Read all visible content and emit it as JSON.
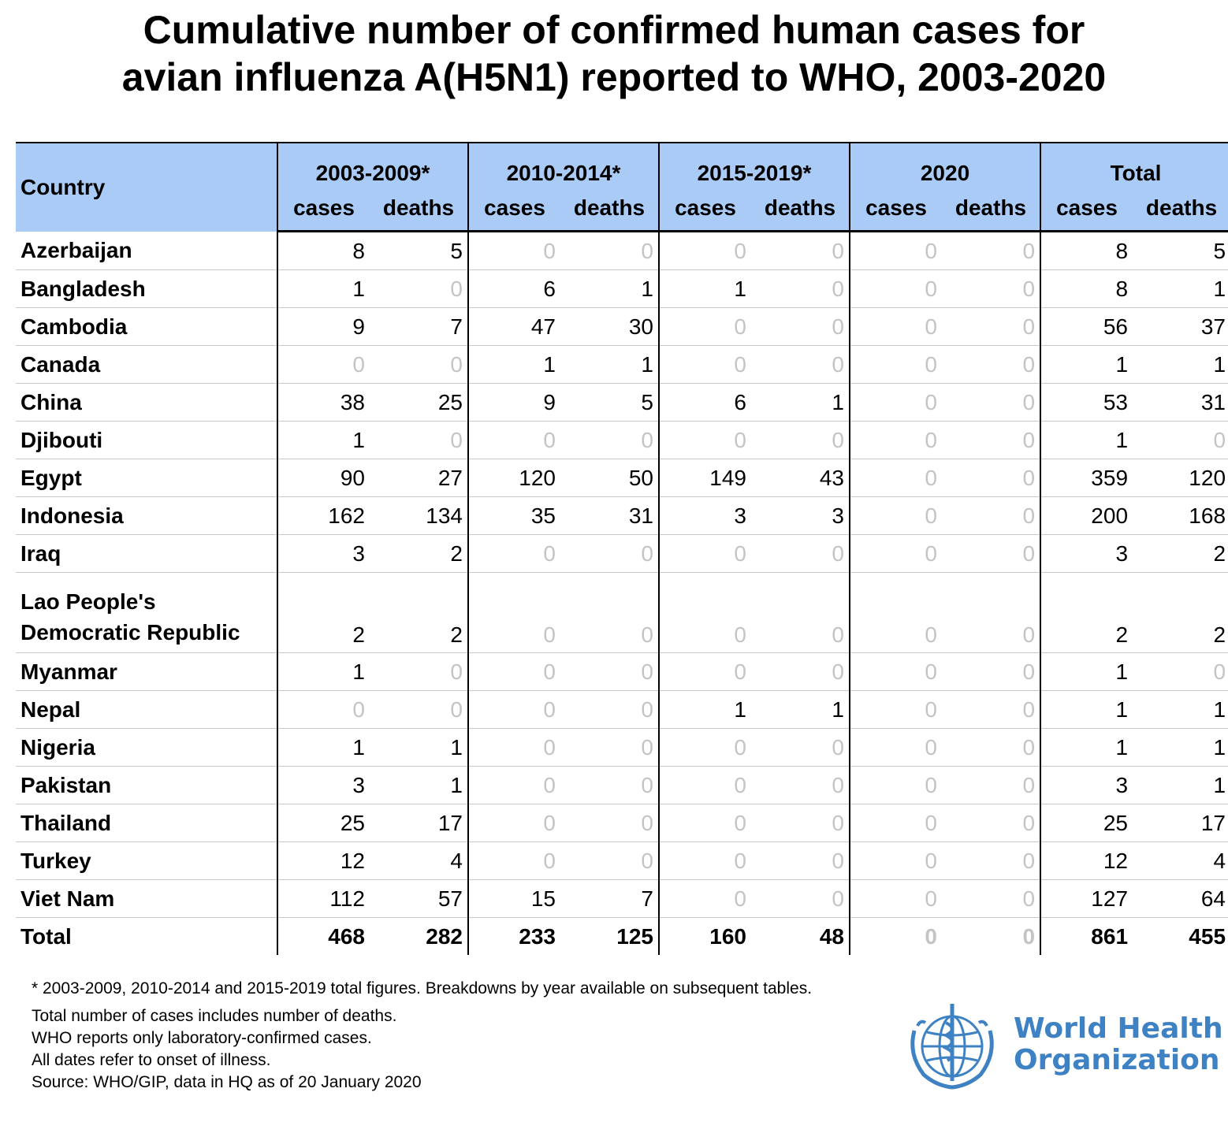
{
  "title": {
    "line1": "Cumulative number of confirmed human cases for",
    "line2": "avian influenza A(H5N1) reported to WHO, 2003-2020"
  },
  "table": {
    "country_header": "Country",
    "groups": [
      "2003-2009*",
      "2010-2014*",
      "2015-2019*",
      "2020",
      "Total"
    ],
    "sub_cases": "cases",
    "sub_deaths": "deaths",
    "rows": [
      {
        "country": "Azerbaijan",
        "values": [
          "8",
          "5",
          "0",
          "0",
          "0",
          "0",
          "0",
          "0",
          "8",
          "5"
        ]
      },
      {
        "country": "Bangladesh",
        "values": [
          "1",
          "0",
          "6",
          "1",
          "1",
          "0",
          "0",
          "0",
          "8",
          "1"
        ]
      },
      {
        "country": "Cambodia",
        "values": [
          "9",
          "7",
          "47",
          "30",
          "0",
          "0",
          "0",
          "0",
          "56",
          "37"
        ]
      },
      {
        "country": "Canada",
        "values": [
          "0",
          "0",
          "1",
          "1",
          "0",
          "0",
          "0",
          "0",
          "1",
          "1"
        ]
      },
      {
        "country": "China",
        "values": [
          "38",
          "25",
          "9",
          "5",
          "6",
          "1",
          "0",
          "0",
          "53",
          "31"
        ]
      },
      {
        "country": "Djibouti",
        "values": [
          "1",
          "0",
          "0",
          "0",
          "0",
          "0",
          "0",
          "0",
          "1",
          "0"
        ]
      },
      {
        "country": "Egypt",
        "values": [
          "90",
          "27",
          "120",
          "50",
          "149",
          "43",
          "0",
          "0",
          "359",
          "120"
        ]
      },
      {
        "country": "Indonesia",
        "values": [
          "162",
          "134",
          "35",
          "31",
          "3",
          "3",
          "0",
          "0",
          "200",
          "168"
        ]
      },
      {
        "country": "Iraq",
        "values": [
          "3",
          "2",
          "0",
          "0",
          "0",
          "0",
          "0",
          "0",
          "3",
          "2"
        ]
      },
      {
        "country_line1": "Lao People's",
        "country_line2": "Democratic Republic",
        "values": [
          "2",
          "2",
          "0",
          "0",
          "0",
          "0",
          "0",
          "0",
          "2",
          "2"
        ]
      },
      {
        "country": "Myanmar",
        "values": [
          "1",
          "0",
          "0",
          "0",
          "0",
          "0",
          "0",
          "0",
          "1",
          "0"
        ]
      },
      {
        "country": "Nepal",
        "values": [
          "0",
          "0",
          "0",
          "0",
          "1",
          "1",
          "0",
          "0",
          "1",
          "1"
        ]
      },
      {
        "country": "Nigeria",
        "values": [
          "1",
          "1",
          "0",
          "0",
          "0",
          "0",
          "0",
          "0",
          "1",
          "1"
        ]
      },
      {
        "country": "Pakistan",
        "values": [
          "3",
          "1",
          "0",
          "0",
          "0",
          "0",
          "0",
          "0",
          "3",
          "1"
        ]
      },
      {
        "country": "Thailand",
        "values": [
          "25",
          "17",
          "0",
          "0",
          "0",
          "0",
          "0",
          "0",
          "25",
          "17"
        ]
      },
      {
        "country": "Turkey",
        "values": [
          "12",
          "4",
          "0",
          "0",
          "0",
          "0",
          "0",
          "0",
          "12",
          "4"
        ]
      },
      {
        "country": "Viet Nam",
        "values": [
          "112",
          "57",
          "15",
          "7",
          "0",
          "0",
          "0",
          "0",
          "127",
          "64"
        ]
      }
    ],
    "total": {
      "country": "Total",
      "values": [
        "468",
        "282",
        "233",
        "125",
        "160",
        "48",
        "0",
        "0",
        "861",
        "455"
      ]
    }
  },
  "footnotes": {
    "asterisk": "* 2003-2009, 2010-2014 and 2015-2019 total figures. Breakdowns by year available on subsequent tables.",
    "notes": [
      "Total number of cases includes number of deaths.",
      "WHO reports only laboratory-confirmed cases.",
      "All dates refer to onset of illness.",
      "Source: WHO/GIP, data in HQ as of 20 January 2020"
    ]
  },
  "logo": {
    "line1": "World Health",
    "line2": "Organization",
    "color": "#3e82c4"
  },
  "colors": {
    "header_bg": "#a9cbf6",
    "zero_text": "#c4c4c4"
  }
}
